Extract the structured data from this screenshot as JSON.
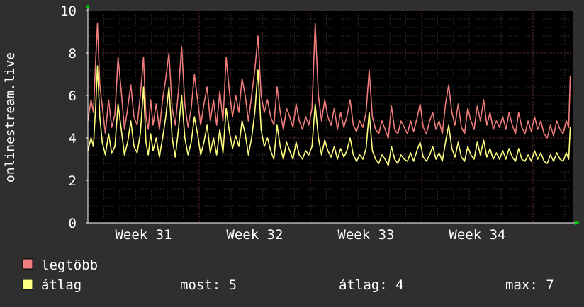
{
  "chart_data": {
    "type": "line",
    "ylabel": "onlinestream.live",
    "ylim": [
      0,
      10
    ],
    "y_ticks": [
      0,
      2,
      4,
      6,
      8,
      10
    ],
    "x_tick_labels": [
      "Week 31",
      "Week 32",
      "Week 33",
      "Week 34"
    ],
    "x_tick_positions": [
      3.5,
      10.5,
      17.5,
      24.5
    ],
    "x_range": [
      0,
      30.5
    ],
    "grid": true,
    "colors": {
      "background": "#2f2f2f",
      "plot_background": "#000000",
      "grid_major": "#5a1f1f",
      "grid_minor": "#333333",
      "axis": "#ffffff",
      "arrow": "#00cc00"
    },
    "series": [
      {
        "name": "legtöbb",
        "color": "#f07c7c",
        "points": [
          [
            0.0,
            4.8
          ],
          [
            0.2,
            5.8
          ],
          [
            0.35,
            5.2
          ],
          [
            0.5,
            7.8
          ],
          [
            0.6,
            9.4
          ],
          [
            0.75,
            6.5
          ],
          [
            0.9,
            5.5
          ],
          [
            1.1,
            4.2
          ],
          [
            1.3,
            5.8
          ],
          [
            1.5,
            4.5
          ],
          [
            1.7,
            5.1
          ],
          [
            1.9,
            7.8
          ],
          [
            2.1,
            6.2
          ],
          [
            2.3,
            4.4
          ],
          [
            2.5,
            5.4
          ],
          [
            2.7,
            6.5
          ],
          [
            2.9,
            5.0
          ],
          [
            3.1,
            4.6
          ],
          [
            3.3,
            6.0
          ],
          [
            3.5,
            7.8
          ],
          [
            3.65,
            5.0
          ],
          [
            3.8,
            4.4
          ],
          [
            3.95,
            5.8
          ],
          [
            4.1,
            4.6
          ],
          [
            4.3,
            5.6
          ],
          [
            4.5,
            4.4
          ],
          [
            4.7,
            5.8
          ],
          [
            4.9,
            6.8
          ],
          [
            5.1,
            8.0
          ],
          [
            5.3,
            5.4
          ],
          [
            5.5,
            4.6
          ],
          [
            5.7,
            6.2
          ],
          [
            5.9,
            8.3
          ],
          [
            6.1,
            5.6
          ],
          [
            6.3,
            4.5
          ],
          [
            6.5,
            5.4
          ],
          [
            6.7,
            7.0
          ],
          [
            6.9,
            5.8
          ],
          [
            7.1,
            4.6
          ],
          [
            7.3,
            5.6
          ],
          [
            7.5,
            6.4
          ],
          [
            7.7,
            4.8
          ],
          [
            7.9,
            5.8
          ],
          [
            8.1,
            4.6
          ],
          [
            8.3,
            6.2
          ],
          [
            8.5,
            4.8
          ],
          [
            8.7,
            7.8
          ],
          [
            8.9,
            6.2
          ],
          [
            9.1,
            5.0
          ],
          [
            9.3,
            6.0
          ],
          [
            9.5,
            5.2
          ],
          [
            9.7,
            6.8
          ],
          [
            9.9,
            6.0
          ],
          [
            10.1,
            4.8
          ],
          [
            10.3,
            6.0
          ],
          [
            10.5,
            7.2
          ],
          [
            10.7,
            8.8
          ],
          [
            10.9,
            6.0
          ],
          [
            11.1,
            5.2
          ],
          [
            11.3,
            5.8
          ],
          [
            11.5,
            5.0
          ],
          [
            11.7,
            4.6
          ],
          [
            11.9,
            6.4
          ],
          [
            12.1,
            5.2
          ],
          [
            12.3,
            4.4
          ],
          [
            12.5,
            5.4
          ],
          [
            12.7,
            5.0
          ],
          [
            12.9,
            4.5
          ],
          [
            13.1,
            5.6
          ],
          [
            13.3,
            4.8
          ],
          [
            13.5,
            4.4
          ],
          [
            13.7,
            5.0
          ],
          [
            13.9,
            4.6
          ],
          [
            14.1,
            5.4
          ],
          [
            14.3,
            9.4
          ],
          [
            14.5,
            6.0
          ],
          [
            14.7,
            4.8
          ],
          [
            14.9,
            5.8
          ],
          [
            15.1,
            5.0
          ],
          [
            15.3,
            4.6
          ],
          [
            15.5,
            5.4
          ],
          [
            15.7,
            4.4
          ],
          [
            15.9,
            5.2
          ],
          [
            16.1,
            4.5
          ],
          [
            16.3,
            5.0
          ],
          [
            16.5,
            5.8
          ],
          [
            16.7,
            4.6
          ],
          [
            16.9,
            4.3
          ],
          [
            17.1,
            4.8
          ],
          [
            17.3,
            4.5
          ],
          [
            17.5,
            5.2
          ],
          [
            17.7,
            7.2
          ],
          [
            17.9,
            5.0
          ],
          [
            18.1,
            4.4
          ],
          [
            18.3,
            4.2
          ],
          [
            18.5,
            4.8
          ],
          [
            18.7,
            4.4
          ],
          [
            18.9,
            4.0
          ],
          [
            19.1,
            5.5
          ],
          [
            19.3,
            4.4
          ],
          [
            19.5,
            4.2
          ],
          [
            19.7,
            4.8
          ],
          [
            19.9,
            4.5
          ],
          [
            20.1,
            4.2
          ],
          [
            20.3,
            4.8
          ],
          [
            20.5,
            4.3
          ],
          [
            20.7,
            4.9
          ],
          [
            20.9,
            5.6
          ],
          [
            21.1,
            4.5
          ],
          [
            21.3,
            4.2
          ],
          [
            21.5,
            4.8
          ],
          [
            21.7,
            5.2
          ],
          [
            21.9,
            4.4
          ],
          [
            22.1,
            4.8
          ],
          [
            22.3,
            4.2
          ],
          [
            22.5,
            5.6
          ],
          [
            22.7,
            6.5
          ],
          [
            22.9,
            5.2
          ],
          [
            23.1,
            4.6
          ],
          [
            23.3,
            5.6
          ],
          [
            23.5,
            4.5
          ],
          [
            23.7,
            4.2
          ],
          [
            23.9,
            5.4
          ],
          [
            24.1,
            4.8
          ],
          [
            24.3,
            4.4
          ],
          [
            24.5,
            5.5
          ],
          [
            24.7,
            4.8
          ],
          [
            24.9,
            5.8
          ],
          [
            25.1,
            4.6
          ],
          [
            25.3,
            5.2
          ],
          [
            25.5,
            4.4
          ],
          [
            25.7,
            4.8
          ],
          [
            25.9,
            4.5
          ],
          [
            26.1,
            5.0
          ],
          [
            26.3,
            4.4
          ],
          [
            26.5,
            5.2
          ],
          [
            26.7,
            4.6
          ],
          [
            26.9,
            4.2
          ],
          [
            27.1,
            5.2
          ],
          [
            27.3,
            4.5
          ],
          [
            27.5,
            4.2
          ],
          [
            27.7,
            4.8
          ],
          [
            27.9,
            4.3
          ],
          [
            28.1,
            5.0
          ],
          [
            28.3,
            4.4
          ],
          [
            28.5,
            4.8
          ],
          [
            28.7,
            4.2
          ],
          [
            28.9,
            4.0
          ],
          [
            29.1,
            4.6
          ],
          [
            29.3,
            4.1
          ],
          [
            29.5,
            4.8
          ],
          [
            29.7,
            4.4
          ],
          [
            29.9,
            4.2
          ],
          [
            30.1,
            4.8
          ],
          [
            30.25,
            4.5
          ],
          [
            30.35,
            6.9
          ]
        ]
      },
      {
        "name": "átlag",
        "color": "#ffff80",
        "points": [
          [
            0.0,
            3.4
          ],
          [
            0.2,
            4.0
          ],
          [
            0.35,
            3.6
          ],
          [
            0.5,
            5.6
          ],
          [
            0.6,
            7.4
          ],
          [
            0.75,
            5.0
          ],
          [
            0.9,
            3.8
          ],
          [
            1.1,
            3.2
          ],
          [
            1.3,
            4.2
          ],
          [
            1.5,
            3.3
          ],
          [
            1.7,
            3.6
          ],
          [
            1.9,
            5.6
          ],
          [
            2.1,
            4.4
          ],
          [
            2.3,
            3.2
          ],
          [
            2.5,
            3.8
          ],
          [
            2.7,
            4.8
          ],
          [
            2.9,
            3.6
          ],
          [
            3.1,
            3.3
          ],
          [
            3.3,
            4.2
          ],
          [
            3.5,
            6.4
          ],
          [
            3.65,
            3.8
          ],
          [
            3.8,
            3.2
          ],
          [
            3.95,
            4.2
          ],
          [
            4.1,
            3.4
          ],
          [
            4.3,
            4.0
          ],
          [
            4.5,
            3.1
          ],
          [
            4.7,
            4.0
          ],
          [
            4.9,
            5.0
          ],
          [
            5.1,
            6.4
          ],
          [
            5.3,
            4.0
          ],
          [
            5.5,
            3.1
          ],
          [
            5.7,
            4.4
          ],
          [
            5.9,
            6.0
          ],
          [
            6.1,
            4.0
          ],
          [
            6.3,
            3.2
          ],
          [
            6.5,
            3.8
          ],
          [
            6.7,
            5.0
          ],
          [
            6.9,
            4.2
          ],
          [
            7.1,
            3.2
          ],
          [
            7.3,
            3.8
          ],
          [
            7.5,
            4.6
          ],
          [
            7.7,
            3.3
          ],
          [
            7.9,
            4.0
          ],
          [
            8.1,
            3.2
          ],
          [
            8.3,
            4.4
          ],
          [
            8.5,
            3.3
          ],
          [
            8.7,
            5.4
          ],
          [
            8.9,
            4.3
          ],
          [
            9.1,
            3.5
          ],
          [
            9.3,
            4.1
          ],
          [
            9.5,
            3.6
          ],
          [
            9.7,
            4.8
          ],
          [
            9.9,
            4.2
          ],
          [
            10.1,
            3.2
          ],
          [
            10.3,
            4.0
          ],
          [
            10.5,
            5.2
          ],
          [
            10.7,
            7.2
          ],
          [
            10.9,
            4.4
          ],
          [
            11.1,
            3.6
          ],
          [
            11.3,
            4.0
          ],
          [
            11.5,
            3.4
          ],
          [
            11.7,
            3.0
          ],
          [
            11.9,
            4.6
          ],
          [
            12.1,
            3.6
          ],
          [
            12.3,
            3.0
          ],
          [
            12.5,
            3.8
          ],
          [
            12.7,
            3.4
          ],
          [
            12.9,
            3.0
          ],
          [
            13.1,
            3.8
          ],
          [
            13.3,
            3.2
          ],
          [
            13.5,
            3.0
          ],
          [
            13.7,
            3.4
          ],
          [
            13.9,
            3.2
          ],
          [
            14.1,
            3.6
          ],
          [
            14.3,
            5.6
          ],
          [
            14.5,
            4.0
          ],
          [
            14.7,
            3.2
          ],
          [
            14.9,
            3.9
          ],
          [
            15.1,
            3.4
          ],
          [
            15.3,
            3.1
          ],
          [
            15.5,
            3.6
          ],
          [
            15.7,
            3.0
          ],
          [
            15.9,
            3.5
          ],
          [
            16.1,
            3.1
          ],
          [
            16.3,
            3.4
          ],
          [
            16.5,
            4.0
          ],
          [
            16.7,
            3.2
          ],
          [
            16.9,
            2.9
          ],
          [
            17.1,
            3.2
          ],
          [
            17.3,
            3.0
          ],
          [
            17.5,
            3.5
          ],
          [
            17.7,
            5.2
          ],
          [
            17.9,
            3.4
          ],
          [
            18.1,
            3.0
          ],
          [
            18.3,
            2.8
          ],
          [
            18.5,
            3.2
          ],
          [
            18.7,
            3.0
          ],
          [
            18.9,
            2.7
          ],
          [
            19.1,
            3.6
          ],
          [
            19.3,
            3.0
          ],
          [
            19.5,
            2.8
          ],
          [
            19.7,
            3.2
          ],
          [
            19.9,
            3.0
          ],
          [
            20.1,
            2.9
          ],
          [
            20.3,
            3.3
          ],
          [
            20.5,
            2.9
          ],
          [
            20.7,
            3.4
          ],
          [
            20.9,
            3.8
          ],
          [
            21.1,
            3.1
          ],
          [
            21.3,
            2.9
          ],
          [
            21.5,
            3.2
          ],
          [
            21.7,
            3.6
          ],
          [
            21.9,
            3.0
          ],
          [
            22.1,
            3.3
          ],
          [
            22.3,
            2.9
          ],
          [
            22.5,
            3.8
          ],
          [
            22.7,
            4.6
          ],
          [
            22.9,
            3.5
          ],
          [
            23.1,
            3.1
          ],
          [
            23.3,
            3.8
          ],
          [
            23.5,
            3.1
          ],
          [
            23.7,
            2.9
          ],
          [
            23.9,
            3.6
          ],
          [
            24.1,
            3.2
          ],
          [
            24.3,
            3.0
          ],
          [
            24.5,
            3.8
          ],
          [
            24.7,
            3.2
          ],
          [
            24.9,
            3.9
          ],
          [
            25.1,
            3.1
          ],
          [
            25.3,
            3.5
          ],
          [
            25.5,
            3.0
          ],
          [
            25.7,
            3.3
          ],
          [
            25.9,
            3.0
          ],
          [
            26.1,
            3.4
          ],
          [
            26.3,
            3.0
          ],
          [
            26.5,
            3.5
          ],
          [
            26.7,
            3.1
          ],
          [
            26.9,
            2.9
          ],
          [
            27.1,
            3.5
          ],
          [
            27.3,
            3.0
          ],
          [
            27.5,
            2.9
          ],
          [
            27.7,
            3.2
          ],
          [
            27.9,
            2.9
          ],
          [
            28.1,
            3.4
          ],
          [
            28.3,
            3.0
          ],
          [
            28.5,
            3.3
          ],
          [
            28.7,
            2.9
          ],
          [
            28.9,
            2.8
          ],
          [
            29.1,
            3.2
          ],
          [
            29.3,
            2.9
          ],
          [
            29.5,
            3.3
          ],
          [
            29.7,
            3.0
          ],
          [
            29.9,
            2.9
          ],
          [
            30.1,
            3.3
          ],
          [
            30.25,
            3.0
          ],
          [
            30.35,
            4.5
          ]
        ]
      }
    ],
    "legend": [
      {
        "label": "legtöbb",
        "color": "#f07c7c"
      },
      {
        "label": "átlag",
        "color": "#ffff80"
      }
    ],
    "stats": {
      "most": "most: 5",
      "atlag": "átlag: 4",
      "max": "max: 7"
    }
  }
}
